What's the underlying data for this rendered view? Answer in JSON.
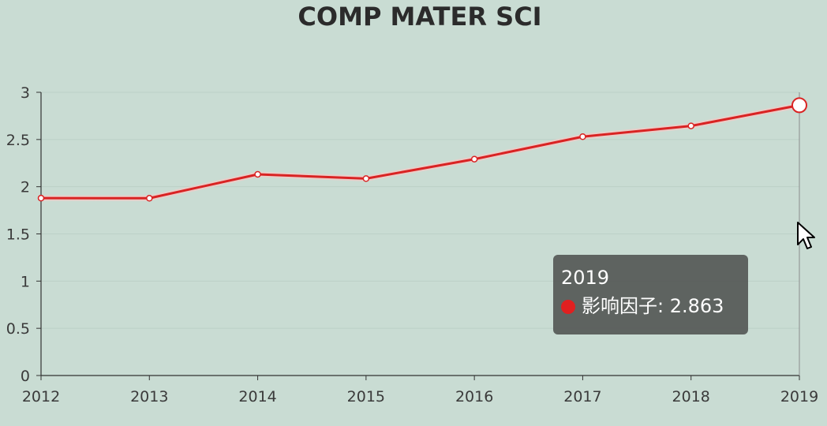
{
  "chart_data": {
    "type": "line",
    "title": "COMP MATER SCI",
    "x": [
      "2012",
      "2013",
      "2014",
      "2015",
      "2016",
      "2017",
      "2018",
      "2019"
    ],
    "series": [
      {
        "name": "影响因子",
        "values": [
          1.879,
          1.878,
          2.131,
          2.086,
          2.292,
          2.53,
          2.644,
          2.863
        ],
        "color": "#d92323"
      }
    ],
    "yticks": [
      "0",
      "0.5",
      "1",
      "1.5",
      "2",
      "2.5",
      "3"
    ],
    "ylim": [
      0,
      3
    ],
    "grid": true,
    "legend": "none"
  },
  "tooltip": {
    "title": "2019",
    "series_name": "影响因子",
    "separator": ":",
    "value": "2.863",
    "dot_color": "#e02020"
  },
  "colors": {
    "background": "#c9dcd3",
    "line": "#d92323",
    "axis": "#333333",
    "grid": "#bcd0c7"
  }
}
